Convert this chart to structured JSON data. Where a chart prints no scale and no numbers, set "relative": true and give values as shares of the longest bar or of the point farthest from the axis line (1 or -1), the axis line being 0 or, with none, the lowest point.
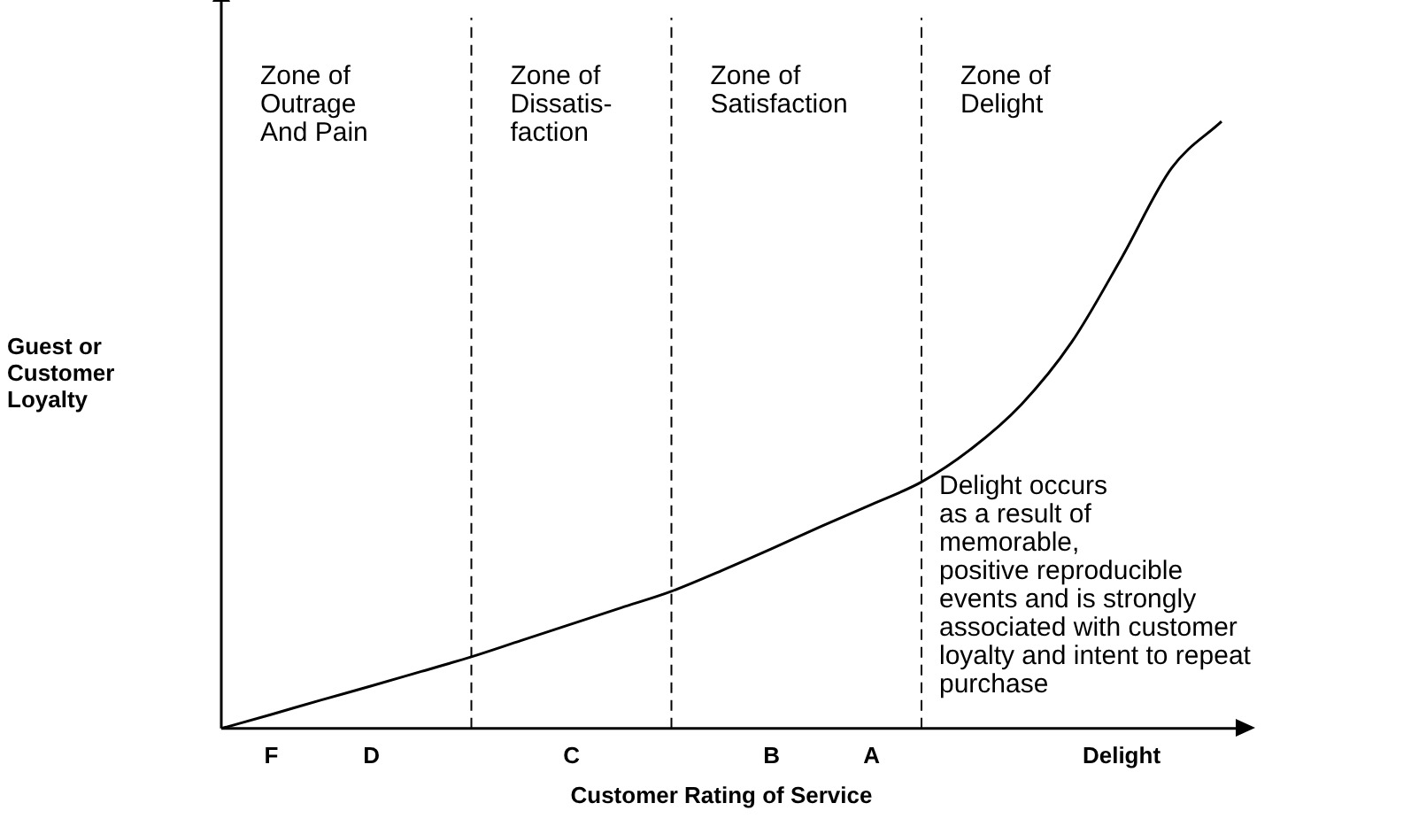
{
  "chart_data": {
    "type": "line",
    "relative": true,
    "xlabel": "Customer Rating of Service",
    "ylabel": "Guest or Customer Loyalty",
    "categories": [
      null,
      "F",
      null,
      "D",
      null,
      null,
      null,
      "C",
      null,
      null,
      null,
      "B",
      null,
      "A",
      null,
      null,
      null,
      null,
      "Delight",
      null,
      null
    ],
    "series": [
      {
        "color": "#000000",
        "values": [
          0,
          0.023,
          0.047,
          0.07,
          0.094,
          0.118,
          0.145,
          0.172,
          0.199,
          0.226,
          0.26,
          0.296,
          0.333,
          0.369,
          0.406,
          0.461,
          0.534,
          0.636,
          0.775,
          0.923,
          1
        ]
      }
    ],
    "annotations": [
      "Zone of\nOutrage\nAnd Pain",
      "Zone of\nDissatis-\nfaction",
      "Zone of\nSatisfaction",
      "Zone of\nDelight",
      "Delight occurs\nas a result of\nmemorable,\npositive reproducible\nevents and is strongly\nassociated with customer\nloyalty and intent to repeat\npurchase"
    ],
    "grid": "x",
    "legend": false,
    "marker": "none",
    "line_style": "solid"
  }
}
